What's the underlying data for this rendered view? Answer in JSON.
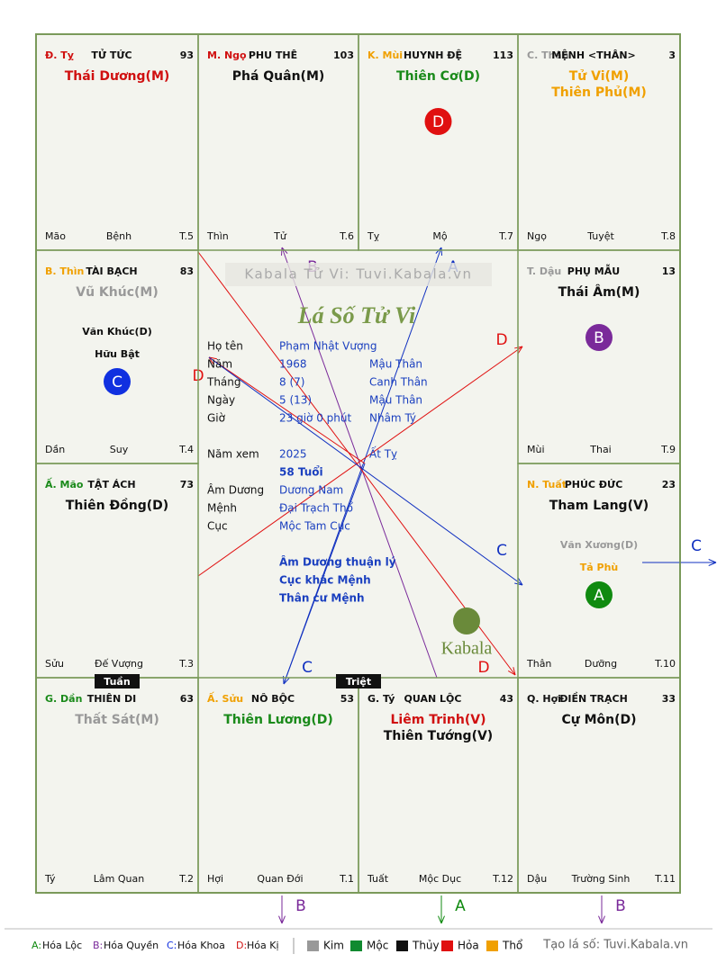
{
  "palaces": [
    {
      "branch": "Đ. Tỵ",
      "branch_color": "#d01010",
      "name": "TỬ TỨC",
      "number": 93,
      "stars": [
        {
          "text": "Thái Dương(M)",
          "color": "#d01010"
        }
      ],
      "minor": [],
      "bottom": [
        "Mão",
        "Bệnh",
        "T.5"
      ]
    },
    {
      "branch": "M. Ngọ",
      "branch_color": "#d01010",
      "name": "PHU THÊ",
      "number": 103,
      "stars": [
        {
          "text": "Phá Quân(M)",
          "color": "#111111"
        }
      ],
      "minor": [],
      "bottom": [
        "Thìn",
        "Tử",
        "T.6"
      ]
    },
    {
      "branch": "K. Mùi",
      "branch_color": "#f0a000",
      "name": "HUYNH ĐỆ",
      "number": 113,
      "stars": [
        {
          "text": "Thiên Cơ(D)",
          "color": "#1a8a1a"
        }
      ],
      "minor": [],
      "badge": {
        "text": "D",
        "color": "#e01010"
      },
      "bottom": [
        "Tỵ",
        "Mộ",
        "T.7"
      ]
    },
    {
      "branch": "C. Thân",
      "branch_color": "#999999",
      "name": "MỆNH <THÂN>",
      "number": 3,
      "stars": [
        {
          "text": "Tử Vi(M)",
          "color": "#f0a000"
        },
        {
          "text": "Thiên Phủ(M)",
          "color": "#f0a000"
        }
      ],
      "minor": [],
      "bottom": [
        "Ngọ",
        "Tuyệt",
        "T.8"
      ]
    },
    {
      "branch": "B. Thìn",
      "branch_color": "#f0a000",
      "name": "TÀI BẠCH",
      "number": 83,
      "stars": [
        {
          "text": "Vũ Khúc(M)",
          "color": "#999999"
        }
      ],
      "minor": [
        {
          "text": "Văn Khúc(D)",
          "color": "#111111"
        },
        {
          "text": "Hữu Bật",
          "color": "#111111"
        }
      ],
      "badge": {
        "text": "C",
        "color": "#1030e0"
      },
      "bottom": [
        "Dần",
        "Suy",
        "T.4"
      ]
    },
    {
      "branch": "T. Dậu",
      "branch_color": "#999999",
      "name": "PHỤ MẪU",
      "number": 13,
      "stars": [
        {
          "text": "Thái Âm(M)",
          "color": "#111111"
        }
      ],
      "minor": [],
      "badge": {
        "text": "B",
        "color": "#7a2a9a"
      },
      "bottom": [
        "Mùi",
        "Thai",
        "T.9"
      ]
    },
    {
      "branch": "Ấ. Mão",
      "branch_color": "#1a8a1a",
      "name": "TẬT ÁCH",
      "number": 73,
      "stars": [
        {
          "text": "Thiên Đồng(D)",
          "color": "#111111"
        }
      ],
      "minor": [],
      "bottom": [
        "Sửu",
        "Đế Vượng",
        "T.3"
      ]
    },
    {
      "branch": "N. Tuất",
      "branch_color": "#f0a000",
      "name": "PHÚC ĐỨC",
      "number": 23,
      "stars": [
        {
          "text": "Tham Lang(V)",
          "color": "#111111"
        }
      ],
      "minor": [
        {
          "text": "Văn Xương(D)",
          "color": "#999999"
        },
        {
          "text": "Tả Phù",
          "color": "#f0a000"
        }
      ],
      "badge": {
        "text": "A",
        "color": "#108a10"
      },
      "bottom": [
        "Thân",
        "Dưỡng",
        "T.10"
      ]
    },
    {
      "branch": "G. Dần",
      "branch_color": "#1a8a1a",
      "name": "THIÊN DI",
      "number": 63,
      "stars": [
        {
          "text": "Thất Sát(M)",
          "color": "#999999"
        }
      ],
      "minor": [],
      "bottom": [
        "Tý",
        "Lâm Quan",
        "T.2"
      ]
    },
    {
      "branch": "Ấ. Sửu",
      "branch_color": "#f0a000",
      "name": "NÔ BỘC",
      "number": 53,
      "stars": [
        {
          "text": "Thiên Lương(D)",
          "color": "#1a8a1a"
        }
      ],
      "minor": [],
      "bottom": [
        "Hợi",
        "Quan Đới",
        "T.1"
      ]
    },
    {
      "branch": "G. Tý",
      "branch_color": "#111111",
      "name": "QUAN LỘC",
      "number": 43,
      "stars": [
        {
          "text": "Liêm Trinh(V)",
          "color": "#d01010"
        },
        {
          "text": "Thiên Tướng(V)",
          "color": "#111111"
        }
      ],
      "minor": [],
      "bottom": [
        "Tuất",
        "Mộc Dục",
        "T.12"
      ]
    },
    {
      "branch": "Q. Hợi",
      "branch_color": "#111111",
      "name": "ĐIỀN TRẠCH",
      "number": 33,
      "stars": [
        {
          "text": "Cự Môn(D)",
          "color": "#111111"
        }
      ],
      "minor": [],
      "bottom": [
        "Dậu",
        "Trường Sinh",
        "T.11"
      ]
    }
  ],
  "tags": [
    "Tuần",
    "Triệt"
  ],
  "center": {
    "watermark": "Kabala Tử Vi: Tuvi.Kabala.vn",
    "title": "Lá Số Tử Vi",
    "info": [
      [
        "Họ tên",
        "Phạm Nhật Vượng",
        ""
      ],
      [
        "Năm",
        "1968",
        "Mậu Thân"
      ],
      [
        "Tháng",
        "8  (7)",
        "Canh Thân"
      ],
      [
        "Ngày",
        "5  (13)",
        "Mậu Thân"
      ],
      [
        "Giờ",
        "23 giờ 0 phút",
        "Nhâm Tý"
      ],
      [
        "Năm xem",
        "2025",
        "Ất Tỵ"
      ],
      [
        "",
        "58 Tuổi",
        ""
      ],
      [
        "Âm Dương",
        "Dương Nam",
        ""
      ],
      [
        "Mệnh",
        "Đại Trạch Thổ",
        ""
      ],
      [
        "Cục",
        "Mộc Tam Cục",
        ""
      ]
    ],
    "notes": [
      "Âm Dương thuận lý",
      "Cục khắc Mệnh",
      "Thân cư Mệnh"
    ],
    "logo": "Kabala"
  },
  "arrows": [
    {
      "label": "B",
      "color": "#7a2a9a"
    },
    {
      "label": "A",
      "color": "#1030c0"
    },
    {
      "label": "C",
      "color": "#1030c0"
    },
    {
      "label": "D",
      "color": "#e01010"
    },
    {
      "label": "D",
      "color": "#e01010"
    },
    {
      "label": "D",
      "color": "#e01010"
    },
    {
      "label": "C",
      "color": "#1030c0"
    },
    {
      "label": "C",
      "color": "#1030c0"
    },
    {
      "label": "B",
      "color": "#7a2a9a"
    },
    {
      "label": "A",
      "color": "#108a10"
    },
    {
      "label": "B",
      "color": "#7a2a9a"
    }
  ],
  "legend": {
    "hoa": [
      {
        "key": "A:",
        "text": "Hóa Lộc",
        "color": "#108a10"
      },
      {
        "key": "B:",
        "text": "Hóa Quyền",
        "color": "#7a2a9a"
      },
      {
        "key": "C:",
        "text": "Hóa Khoa",
        "color": "#1030e0"
      },
      {
        "key": "D:",
        "text": "Hóa Kị",
        "color": "#d01010"
      }
    ],
    "elements": [
      {
        "name": "Kim",
        "color": "#999999"
      },
      {
        "name": "Mộc",
        "color": "#108a30"
      },
      {
        "name": "Thủy",
        "color": "#111111"
      },
      {
        "name": "Hỏa",
        "color": "#e01010"
      },
      {
        "name": "Thổ",
        "color": "#f0a000"
      }
    ],
    "credit": "Tạo lá số: Tuvi.Kabala.vn"
  }
}
